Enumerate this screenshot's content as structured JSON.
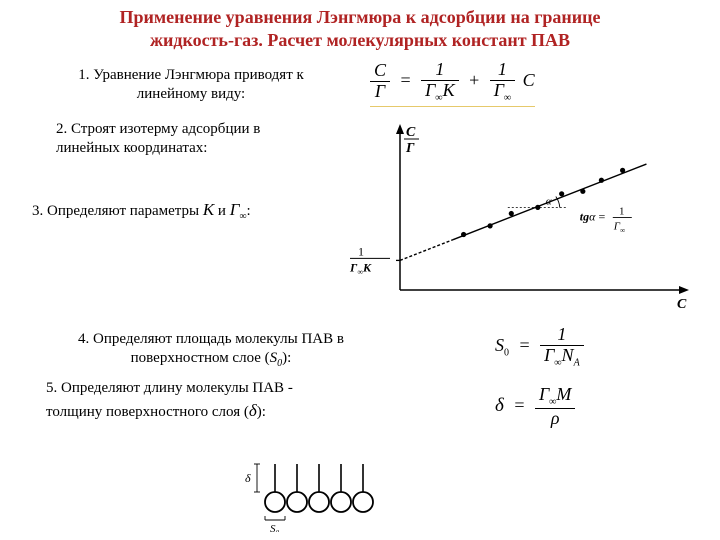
{
  "title": {
    "line1": "Применение уравнения Лэнгмюра к адсорбции на границе",
    "line2": "жидкость-газ. Расчет молекулярных констант ПАВ",
    "color": "#b02323",
    "fontsize": 18
  },
  "steps": {
    "s1": "1. Уравнение Лэнгмюра приводят к линейному виду:",
    "s2": "2. Строят изотерму адсорбции в линейных координатах:",
    "s3_a": "3. Определяют параметры ",
    "s3_K": "К",
    "s3_b": "  и  ",
    "s3_G": "Г",
    "s3_inf": "∞",
    "s3_c": ":",
    "s4_a": "4. Определяют площадь молекулы ПАВ в поверхностном слое (",
    "s4_S": "S",
    "s4_0": "0",
    "s4_b": "):",
    "s5_a": "5. Определяют длину молекулы ПАВ -",
    "s5_b": "толщину поверхностного слоя (",
    "s5_d": "δ",
    "s5_c": "):"
  },
  "eq1": {
    "lhs_num": "C",
    "lhs_den": "Г",
    "t1_num": "1",
    "t1_den_a": "Г",
    "t1_den_inf": "∞",
    "t1_den_K": "K",
    "t2_num": "1",
    "t2_den_a": "Г",
    "t2_den_inf": "∞",
    "tail": "C"
  },
  "chart": {
    "type": "scatter-linefit",
    "x_label": "С",
    "y_label_num": "C",
    "y_label_den": "Г",
    "origin_num": "1",
    "origin_den_a": "Г",
    "origin_den_inf": "∞",
    "origin_den_K": "К",
    "tg_label_a": "tg",
    "tg_label_alpha": "α",
    "tg_eq": " = ",
    "tg_rhs_num": "1",
    "tg_rhs_den_a": "Г",
    "tg_rhs_den_inf": "∞",
    "alpha_label": "α",
    "axis_color": "#000000",
    "line_color": "#000000",
    "point_color": "#000000",
    "background_color": "#ffffff",
    "xlim": [
      0,
      10
    ],
    "ylim": [
      0,
      6
    ],
    "intercept": 1.2,
    "slope": 0.42,
    "points_x": [
      2.4,
      3.4,
      4.2,
      5.2,
      6.1,
      6.9,
      7.6,
      8.4
    ],
    "points_y": [
      2.25,
      2.6,
      3.1,
      3.35,
      3.9,
      4.0,
      4.45,
      4.85
    ],
    "point_r": 2.6,
    "line_width": 1.4,
    "dash": "3,2"
  },
  "eq_s0": {
    "lhs": "S",
    "lhs_sub": "0",
    "num": "1",
    "den_a": "Г",
    "den_inf": "∞",
    "den_N": "N",
    "den_A": "A"
  },
  "eq_delta": {
    "lhs": "δ",
    "num_a": "Г",
    "num_inf": "∞",
    "num_M": "M",
    "den": "ρ"
  },
  "diagram": {
    "delta_label": "δ",
    "S0_label": "S",
    "S0_sub": "0",
    "circle_r": 10,
    "tail_h": 28,
    "n_circles": 5,
    "stroke": "#000000",
    "fill": "#ffffff"
  }
}
